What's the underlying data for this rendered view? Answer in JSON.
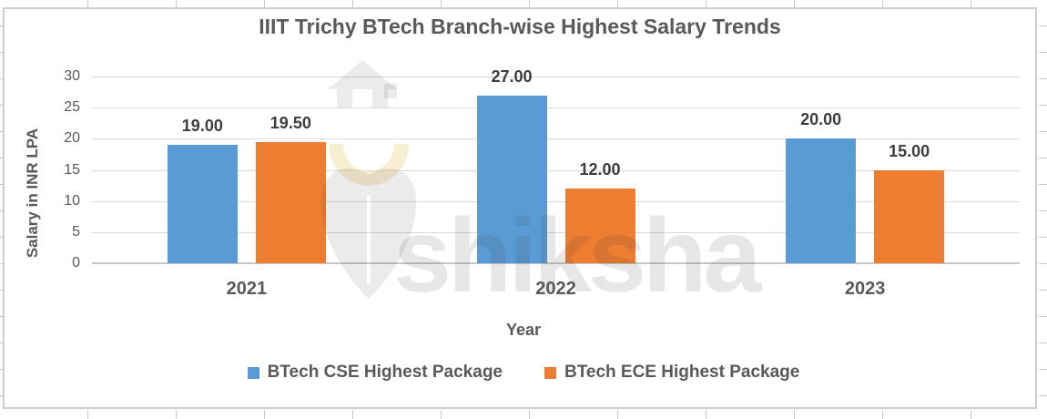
{
  "chart_data": {
    "type": "bar",
    "title": "IIIT Trichy BTech Branch-wise Highest Salary Trends",
    "xlabel": "Year",
    "ylabel": "Salary in INR LPA",
    "categories": [
      "2021",
      "2022",
      "2023"
    ],
    "series": [
      {
        "id": "cse",
        "name": "BTech CSE Highest Package",
        "color": "#5B9BD5",
        "values": [
          19.0,
          27.0,
          20.0
        ],
        "labels": [
          "19.00",
          "27.00",
          "20.00"
        ]
      },
      {
        "id": "ece",
        "name": "BTech ECE Highest Package",
        "color": "#ED7D31",
        "values": [
          19.5,
          12.0,
          15.0
        ],
        "labels": [
          "19.50",
          "12.00",
          "15.00"
        ]
      }
    ],
    "ylim": [
      0,
      30
    ],
    "ytick_step": 5,
    "yticks": [
      "0",
      "5",
      "10",
      "15",
      "20",
      "25",
      "30"
    ],
    "grid": true,
    "legend_position": "bottom"
  },
  "watermark": {
    "text": "shiksha",
    "icon": "shiksha-pen-nib-icon"
  },
  "colors": {
    "series_cse": "#5B9BD5",
    "series_ece": "#ED7D31",
    "gridline": "#D9D9D9",
    "text": "#595959",
    "frame_border": "#CFCECE"
  }
}
